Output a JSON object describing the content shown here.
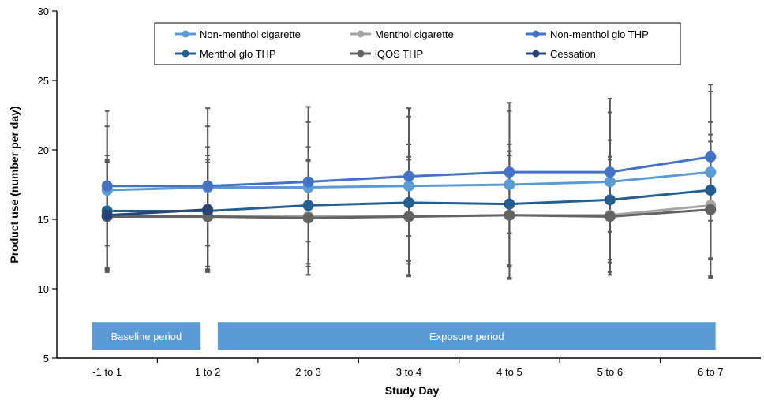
{
  "chart_data": {
    "type": "line",
    "title": "",
    "xlabel": "Study Day",
    "ylabel": "Product use (number per day)",
    "ylim": [
      5,
      30
    ],
    "y_ticks": [
      5,
      10,
      15,
      20,
      25,
      30
    ],
    "categories": [
      "-1 to 1",
      "1 to 2",
      "2 to 3",
      "3 to 4",
      "4 to 5",
      "5 to 6",
      "6 to 7"
    ],
    "grid": false,
    "legend_position": "top",
    "series": [
      {
        "name": "Non-menthol cigarette",
        "color": "#5b9bd5",
        "values": [
          17.1,
          17.3,
          17.3,
          17.4,
          17.5,
          17.7,
          18.4
        ],
        "error_low": [
          11.5,
          11.6,
          11.6,
          11.8,
          11.7,
          11.9,
          12.1
        ],
        "error_high": [
          22.8,
          23.0,
          23.1,
          23.0,
          23.4,
          23.7,
          24.7
        ]
      },
      {
        "name": "Menthol cigarette",
        "color": "#a5a5a5",
        "values": [
          15.2,
          15.2,
          15.2,
          15.2,
          15.3,
          15.3,
          16.0
        ],
        "error_low": [
          11.2,
          11.2,
          11.0,
          11.0,
          10.8,
          11.0,
          10.9
        ],
        "error_high": [
          19.2,
          19.3,
          19.3,
          19.3,
          19.6,
          19.5,
          21.1
        ]
      },
      {
        "name": "Non-menthol glo THP",
        "color": "#4472c4",
        "values": [
          17.4,
          17.4,
          17.7,
          18.1,
          18.4,
          18.4,
          19.5
        ],
        "error_low": [
          13.1,
          13.1,
          13.4,
          13.8,
          14.0,
          14.1,
          14.9
        ],
        "error_high": [
          21.7,
          21.7,
          22.0,
          22.4,
          22.8,
          22.7,
          24.2
        ]
      },
      {
        "name": "Menthol glo THP",
        "color": "#255e91",
        "values": [
          15.6,
          15.6,
          16.0,
          16.2,
          16.1,
          16.4,
          17.1
        ],
        "error_low": [
          11.4,
          11.4,
          11.8,
          12.0,
          11.6,
          12.1,
          12.2
        ],
        "error_high": [
          19.6,
          19.6,
          20.2,
          20.4,
          20.4,
          20.7,
          22.0
        ]
      },
      {
        "name": "iQOS THP",
        "color": "#636363",
        "values": [
          15.2,
          15.2,
          15.1,
          15.2,
          15.3,
          15.2,
          15.7
        ],
        "error_low": [
          11.3,
          11.3,
          11.0,
          10.9,
          10.7,
          11.2,
          10.8
        ],
        "error_high": [
          19.1,
          19.1,
          19.2,
          19.5,
          19.9,
          19.3,
          20.6
        ]
      },
      {
        "name": "Cessation",
        "color": "#264478",
        "values": [
          15.3,
          15.7,
          null,
          null,
          null,
          null,
          null
        ],
        "error_low": [
          11.4,
          11.4,
          null,
          null,
          null,
          null,
          null
        ],
        "error_high": [
          19.3,
          20.2,
          null,
          null,
          null,
          null,
          null
        ]
      }
    ],
    "annotations": [
      {
        "text": "Baseline period",
        "x_start": -0.15,
        "x_end": 0.93
      },
      {
        "text": "Exposure period",
        "x_start": 1.1,
        "x_end": 6.05
      }
    ],
    "annotation_color": "#5b9bd5",
    "annotation_y_range": [
      5.6,
      7.6
    ]
  }
}
